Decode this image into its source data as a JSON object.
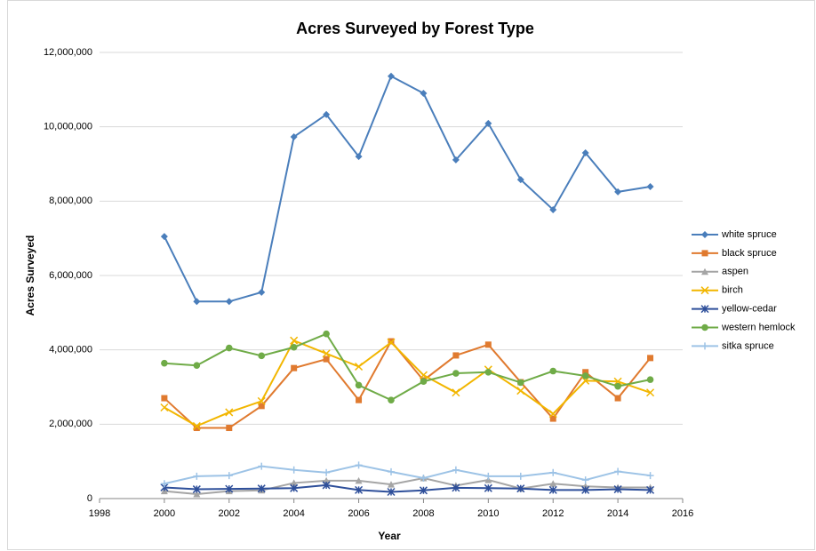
{
  "chart_data": {
    "type": "line",
    "title": "Acres Surveyed by Forest Type",
    "x_label": "Year",
    "y_label": "Acres Surveyed",
    "x": [
      2000,
      2001,
      2002,
      2003,
      2004,
      2005,
      2006,
      2007,
      2008,
      2009,
      2010,
      2011,
      2012,
      2013,
      2014,
      2015
    ],
    "xlim": [
      1998,
      2016
    ],
    "xticks": [
      1998,
      2000,
      2002,
      2004,
      2006,
      2008,
      2010,
      2012,
      2014,
      2016
    ],
    "ylim": [
      0,
      12000000
    ],
    "yticks": [
      0,
      {
        "value": 2000000,
        "label": "2,000,000"
      },
      {
        "value": 4000000,
        "label": "4,000,000"
      },
      {
        "value": 6000000,
        "label": "6,000,000"
      },
      {
        "value": 8000000,
        "label": "8,000,000"
      },
      {
        "value": 10000000,
        "label": "10,000,000"
      },
      {
        "value": 12000000,
        "label": "12,000,000"
      }
    ],
    "grid": true,
    "legend": "right",
    "series": [
      {
        "name": "white spruce",
        "color": "#4a7ebb",
        "marker": "diamond",
        "values": [
          7050000,
          5300000,
          5300000,
          5550000,
          9730000,
          10330000,
          9200000,
          11360000,
          10900000,
          9110000,
          10090000,
          8580000,
          7770000,
          9300000,
          8250000,
          8390000
        ]
      },
      {
        "name": "black spruce",
        "color": "#e07a2f",
        "marker": "square",
        "values": [
          2700000,
          1900000,
          1900000,
          2490000,
          3510000,
          3750000,
          2650000,
          4230000,
          3180000,
          3850000,
          4140000,
          3130000,
          2150000,
          3400000,
          2700000,
          3780000
        ]
      },
      {
        "name": "aspen",
        "color": "#a5a5a5",
        "marker": "triangle",
        "values": [
          200000,
          120000,
          200000,
          220000,
          420000,
          480000,
          480000,
          380000,
          550000,
          350000,
          500000,
          270000,
          400000,
          330000,
          300000,
          300000
        ]
      },
      {
        "name": "birch",
        "color": "#f2b600",
        "marker": "x",
        "values": [
          2450000,
          1950000,
          2320000,
          2620000,
          4250000,
          3900000,
          3550000,
          4200000,
          3320000,
          2850000,
          3470000,
          2900000,
          2280000,
          3170000,
          3150000,
          2850000
        ]
      },
      {
        "name": "yellow-cedar",
        "color": "#2e4f9a",
        "marker": "star",
        "values": [
          300000,
          250000,
          260000,
          270000,
          280000,
          360000,
          230000,
          180000,
          220000,
          290000,
          280000,
          270000,
          230000,
          230000,
          250000,
          230000
        ]
      },
      {
        "name": "western hemlock",
        "color": "#6fab47",
        "marker": "circle",
        "values": [
          3640000,
          3580000,
          4050000,
          3840000,
          4070000,
          4430000,
          3050000,
          2650000,
          3150000,
          3370000,
          3400000,
          3120000,
          3430000,
          3300000,
          3020000,
          3200000
        ]
      },
      {
        "name": "sitka spruce",
        "color": "#9dc3e6",
        "marker": "plus",
        "values": [
          400000,
          600000,
          620000,
          870000,
          770000,
          700000,
          900000,
          720000,
          550000,
          770000,
          600000,
          600000,
          700000,
          500000,
          730000,
          620000
        ]
      }
    ]
  }
}
